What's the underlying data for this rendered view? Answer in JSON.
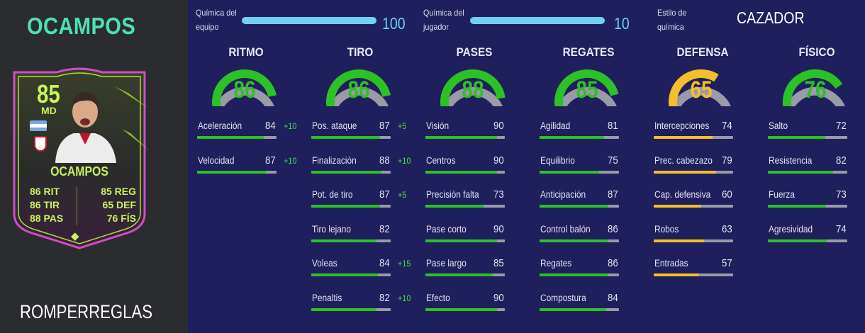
{
  "player": {
    "name": "OCAMPOS",
    "version": "ROMPERREGLAS",
    "card": {
      "rating": "85",
      "position": "MD",
      "name": "OCAMPOS",
      "stats": [
        {
          "value": "86",
          "label": "RIT"
        },
        {
          "value": "85",
          "label": "REG"
        },
        {
          "value": "86",
          "label": "TIR"
        },
        {
          "value": "65",
          "label": "DEF"
        },
        {
          "value": "88",
          "label": "PAS"
        },
        {
          "value": "76",
          "label": "FÍS"
        }
      ],
      "flag": "argentina-flag-icon",
      "club": "sevilla-crest-icon"
    }
  },
  "chemistry": {
    "team_label_1": "Química del",
    "team_label_2": "equipo",
    "team_value": "100",
    "player_label_1": "Química del",
    "player_label_2": "jugador",
    "player_value": "10",
    "style_label_1": "Estilo de",
    "style_label_2": "química",
    "style_value": "CAZADOR"
  },
  "colors": {
    "green": "#2ec027",
    "yellow": "#f3bf2a",
    "track": "#9a9aa8",
    "accent": "#71d0f3",
    "card_text": "#c7f25c",
    "name_teal": "#4ee0b5"
  },
  "categories": [
    {
      "name": "RITMO",
      "value": "86",
      "color": "green",
      "attributes": [
        {
          "name": "Aceleración",
          "value": "84",
          "boost": "+10"
        },
        {
          "name": "Velocidad",
          "value": "87",
          "boost": "+10"
        }
      ]
    },
    {
      "name": "TIRO",
      "value": "86",
      "color": "green",
      "attributes": [
        {
          "name": "Pos. ataque",
          "value": "87",
          "boost": "+5"
        },
        {
          "name": "Finalización",
          "value": "88",
          "boost": "+10"
        },
        {
          "name": "Pot. de tiro",
          "value": "87",
          "boost": "+5"
        },
        {
          "name": "Tiro lejano",
          "value": "82",
          "boost": ""
        },
        {
          "name": "Voleas",
          "value": "84",
          "boost": "+15"
        },
        {
          "name": "Penaltis",
          "value": "82",
          "boost": "+10"
        }
      ]
    },
    {
      "name": "PASES",
      "value": "88",
      "color": "green",
      "attributes": [
        {
          "name": "Visión",
          "value": "90",
          "boost": ""
        },
        {
          "name": "Centros",
          "value": "90",
          "boost": ""
        },
        {
          "name": "Precisión falta",
          "value": "73",
          "boost": ""
        },
        {
          "name": "Pase corto",
          "value": "90",
          "boost": ""
        },
        {
          "name": "Pase largo",
          "value": "85",
          "boost": ""
        },
        {
          "name": "Efecto",
          "value": "90",
          "boost": ""
        }
      ]
    },
    {
      "name": "REGATES",
      "value": "85",
      "color": "green",
      "attributes": [
        {
          "name": "Agilidad",
          "value": "81",
          "boost": ""
        },
        {
          "name": "Equilibrio",
          "value": "75",
          "boost": ""
        },
        {
          "name": "Anticipación",
          "value": "87",
          "boost": ""
        },
        {
          "name": "Control balón",
          "value": "86",
          "boost": ""
        },
        {
          "name": "Regates",
          "value": "86",
          "boost": ""
        },
        {
          "name": "Compostura",
          "value": "84",
          "boost": ""
        }
      ]
    },
    {
      "name": "DEFENSA",
      "value": "65",
      "color": "yellow",
      "attributes": [
        {
          "name": "Intercepciones",
          "value": "74",
          "boost": ""
        },
        {
          "name": "Prec. cabezazo",
          "value": "79",
          "boost": ""
        },
        {
          "name": "Cap. defensiva",
          "value": "60",
          "boost": ""
        },
        {
          "name": "Robos",
          "value": "63",
          "boost": ""
        },
        {
          "name": "Entradas",
          "value": "57",
          "boost": ""
        }
      ]
    },
    {
      "name": "FÍSICO",
      "value": "76",
      "color": "green",
      "attributes": [
        {
          "name": "Salto",
          "value": "72",
          "boost": ""
        },
        {
          "name": "Resistencia",
          "value": "82",
          "boost": ""
        },
        {
          "name": "Fuerza",
          "value": "73",
          "boost": ""
        },
        {
          "name": "Agresividad",
          "value": "74",
          "boost": ""
        }
      ]
    }
  ]
}
